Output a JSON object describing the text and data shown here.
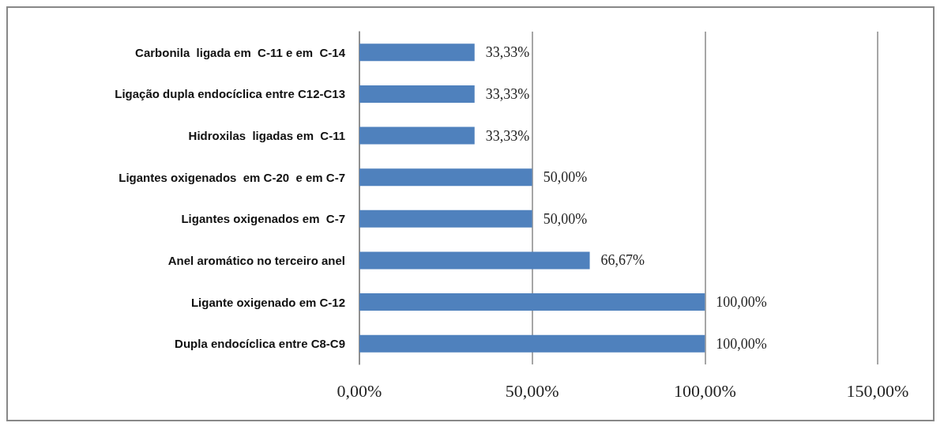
{
  "chart_data": {
    "type": "bar",
    "orientation": "horizontal",
    "categories": [
      "Carbonila  ligada em  C-11 e em  C-14",
      "Ligação dupla endocíclica entre C12-C13",
      "Hidroxilas  ligadas em  C-11",
      "Ligantes oxigenados  em C-20  e em C-7",
      "Ligantes oxigenados em  C-7",
      "Anel aromático no terceiro anel",
      "Ligante oxigenado em C-12",
      "Dupla endocíclica entre C8-C9"
    ],
    "values": [
      33.33,
      33.33,
      33.33,
      50,
      50,
      66.67,
      100,
      100
    ],
    "value_labels": [
      "33,33%",
      "33,33%",
      "33,33%",
      "50,00%",
      "50,00%",
      "66,67%",
      "100,00%",
      "100,00%"
    ],
    "color": "#4f81bd",
    "xlim": [
      0,
      150
    ],
    "xticks": [
      {
        "value": 0,
        "label": "0,00%"
      },
      {
        "value": 50,
        "label": "50,00%"
      },
      {
        "value": 100,
        "label": "100,00%"
      },
      {
        "value": 150,
        "label": "150,00%"
      }
    ],
    "grid": "x"
  }
}
